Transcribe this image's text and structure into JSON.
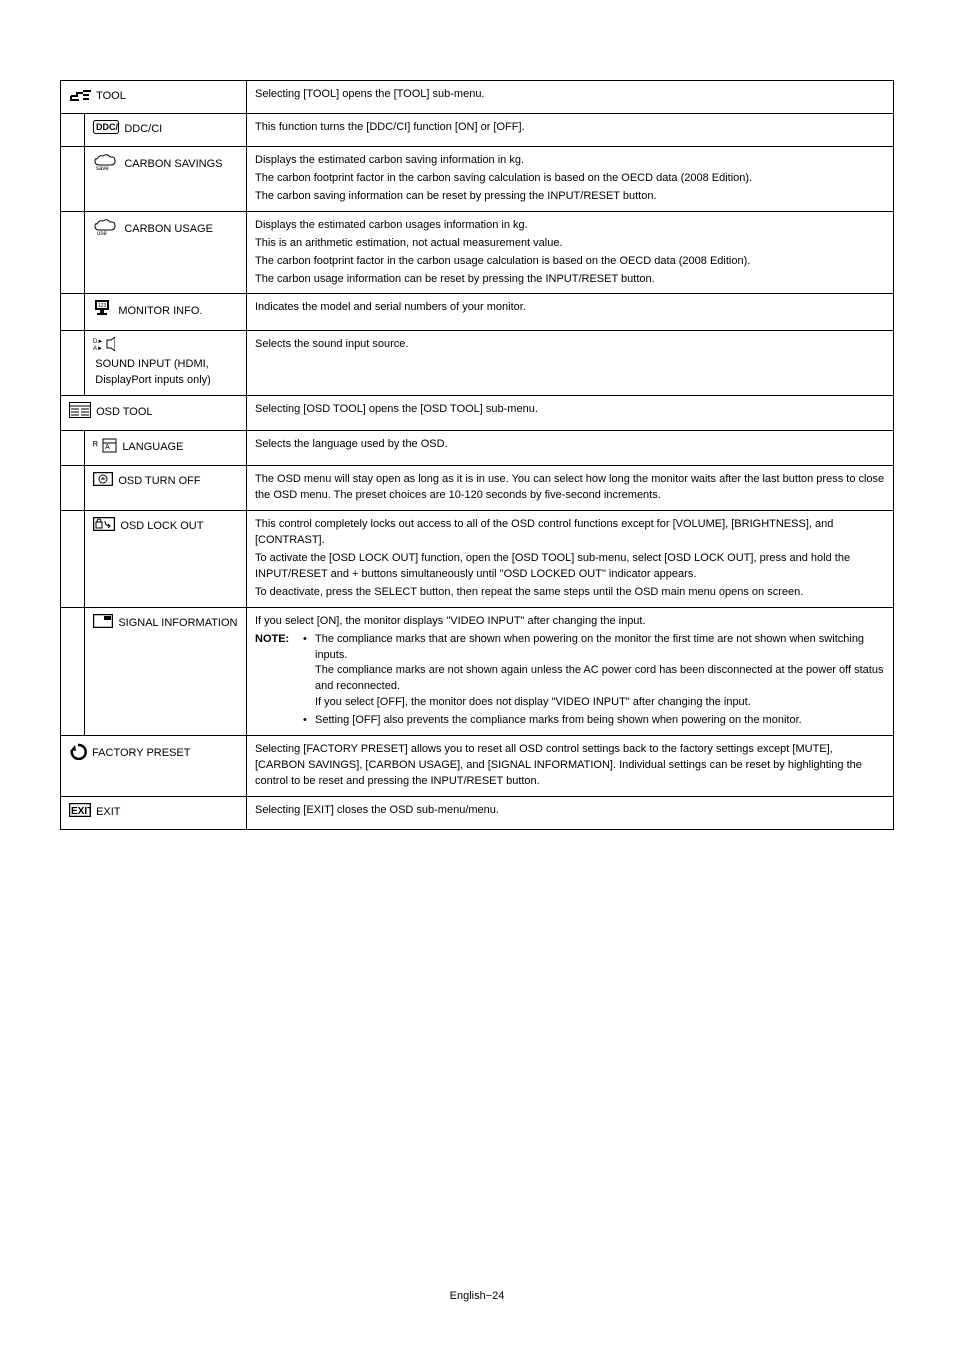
{
  "footer": "English−24",
  "rows": [
    {
      "type": "section",
      "iconSvg": "<svg width='22' height='14' viewBox='0 0 22 14'><path d='M2 9 L8 9 L8 6 L14 6 M14 4 L22 4 M14 8 L20 8 M14 12 L20 12' stroke='#000' stroke-width='2' fill='none'/><path d='M2 9 L2 13 L10 13' stroke='#000' stroke-width='2' fill='none'/></svg>",
      "label": "TOOL",
      "desc": "Selecting [TOOL] opens the [TOOL] sub-menu."
    },
    {
      "type": "sub",
      "iconSvg": "<svg width='26' height='14' viewBox='0 0 26 14'><rect x='0.5' y='0.5' width='25' height='13' rx='2' fill='none' stroke='#000' stroke-width='1'/><text x='3' y='10' font-size='9' font-family='Arial' font-weight='bold'>DDC/CI</text></svg>",
      "label": "DDC/CI",
      "desc": "This function turns the [DDC/CI] function [ON] or [OFF]."
    },
    {
      "type": "sub",
      "iconSvg": "<svg width='26' height='18' viewBox='0 0 26 18'><path d='M4 6 Q6 2 10 3 Q14 0 17 4 Q22 3 22 8 Q22 12 18 12 L6 12 Q2 12 2 8 Q2 5 4 6 Z' fill='none' stroke='#000' stroke-width='1'/><text x='3' y='17' font-size='6' font-family='Arial'>save</text></svg>",
      "label": "CARBON SAVINGS",
      "descLines": [
        "Displays the estimated carbon saving information in kg.",
        "The carbon footprint factor in the carbon saving calculation is based on the OECD data (2008 Edition).",
        "The carbon saving information can be reset by pressing the INPUT/RESET button."
      ]
    },
    {
      "type": "sub",
      "iconSvg": "<svg width='26' height='18' viewBox='0 0 26 18'><path d='M4 6 Q6 2 10 3 Q14 0 17 4 Q22 3 22 8 Q22 12 18 12 L6 12 Q2 12 2 8 Q2 5 4 6 Z' fill='none' stroke='#000' stroke-width='1'/><text x='4' y='17' font-size='6' font-family='Arial'>use</text></svg>",
      "label": "CARBON USAGE",
      "descLines": [
        "Displays the estimated carbon usages information in kg.",
        "This is an arithmetic estimation, not actual measurement value.",
        "The carbon footprint factor in the carbon usage calculation is based on the OECD data (2008 Edition).",
        "The carbon usage information can be reset by pressing the INPUT/RESET button."
      ]
    },
    {
      "type": "sub",
      "iconSvg": "<svg width='20' height='18' viewBox='0 0 20 18'><rect x='2' y='0' width='14' height='10' fill='#000'/><rect x='4' y='2' width='10' height='6' fill='#fff'/><text x='5' y='7' font-size='5' fill='#000'>123</text><rect x='7' y='10' width='4' height='3' fill='#000'/><rect x='4' y='13' width='10' height='2' fill='#000'/></svg>",
      "label": "MONITOR INFO.",
      "desc": "Indicates the model and serial numbers of your monitor."
    },
    {
      "type": "sub",
      "iconSvg": "<svg width='22' height='14' viewBox='0 0 22 14'><text x='0' y='6' font-size='6'>D►</text><text x='0' y='13' font-size='6'>A►</text><path d='M14 3 L18 3 L22 0 L22 14 L18 11 L14 11 Z' fill='none' stroke='#000' stroke-width='1'/></svg>",
      "label": "SOUND INPUT (HDMI, DisplayPort inputs only)",
      "desc": "Selects the sound input source."
    },
    {
      "type": "section",
      "iconSvg": "<svg width='22' height='16' viewBox='0 0 22 16'><rect x='0.5' y='0.5' width='21' height='15' fill='none' stroke='#000' stroke-width='1'/><line x1='0' y1='4' x2='22' y2='4' stroke='#000' stroke-width='1'/><line x1='2' y1='7' x2='10' y2='7' stroke='#000'/><line x1='2' y1='10' x2='10' y2='10' stroke='#000'/><line x1='2' y1='13' x2='10' y2='13' stroke='#000'/><line x1='12' y1='7' x2='20' y2='7' stroke='#000'/><line x1='12' y1='10' x2='20' y2='10' stroke='#000'/><line x1='12' y1='13' x2='20' y2='13' stroke='#000'/></svg>",
      "label": "OSD TOOL",
      "desc": "Selecting [OSD TOOL] opens the [OSD TOOL] sub-menu."
    },
    {
      "type": "sub",
      "iconSvg": "<svg width='24' height='16' viewBox='0 0 24 16'><text x='0' y='12' font-size='11'>ᴿ</text><rect x='10' y='2' width='13' height='13' fill='none' stroke='#000' stroke-width='1'/><line x1='10' y1='6' x2='23' y2='6' stroke='#000'/><text x='12' y='12' font-size='7'>Ä</text></svg>",
      "label": "LANGUAGE",
      "desc": "Selects the language used by the OSD."
    },
    {
      "type": "sub",
      "iconSvg": "<svg width='20' height='14' viewBox='0 0 20 14'><rect x='0.5' y='0.5' width='19' height='13' fill='none' stroke='#000' stroke-width='1.5'/><circle cx='10' cy='7' r='4' fill='none' stroke='#000' stroke-width='1'/><line x1='8' y1='7' x2='12' y2='7' stroke='#000'/><line x1='10' y1='5' x2='10' y2='7' stroke='#000'/></svg>",
      "label": "OSD TURN OFF",
      "desc": "The OSD menu will stay open as long as it is in use. You can select how long the monitor waits after the last button press to close the OSD menu. The preset choices are 10-120 seconds by five-second increments."
    },
    {
      "type": "sub",
      "iconSvg": "<svg width='22' height='14' viewBox='0 0 22 14'><rect x='0.5' y='0.5' width='21' height='13' fill='none' stroke='#000' stroke-width='1.5'/><rect x='3' y='5' width='6' height='6' fill='none' stroke='#000' stroke-width='1'/><path d='M4 5 Q4 2 6 2 Q8 2 8 5' fill='none' stroke='#000' stroke-width='1'/><path d='M12 4 Q12 9 17 9 M15 7 L17 9 L15 11' fill='none' stroke='#000' stroke-width='1'/></svg>",
      "label": "OSD LOCK OUT",
      "descLines": [
        "This control completely locks out access to all of the OSD control functions except for [VOLUME], [BRIGHTNESS], and [CONTRAST].",
        "To activate the [OSD LOCK OUT] function, open the [OSD TOOL] sub-menu, select [OSD LOCK OUT], press and hold the INPUT/RESET and + buttons simultaneously until \"OSD LOCKED OUT\" indicator appears.",
        "To deactivate, press the SELECT button, then repeat the same steps until the OSD main menu opens on screen."
      ]
    },
    {
      "type": "sub",
      "iconSvg": "<svg width='20' height='14' viewBox='0 0 20 14'><rect x='0.5' y='0.5' width='19' height='13' fill='none' stroke='#000' stroke-width='1.5'/><rect x='11' y='2' width='7' height='4' fill='#000'/></svg>",
      "label": "SIGNAL INFORMATION",
      "signalDesc": {
        "intro": "If you select [ON], the monitor displays \"VIDEO INPUT\" after changing the input.",
        "noteLabel": "NOTE:",
        "bullets": [
          "The compliance marks that are shown when powering on the monitor the first time are not shown when switching inputs.\nThe compliance marks are not shown again unless the AC power cord has been disconnected at the power off status and reconnected.\nIf you select [OFF], the monitor does not display \"VIDEO INPUT\" after changing the input.",
          "Setting [OFF] also prevents the compliance marks from being shown when powering on the monitor."
        ]
      }
    },
    {
      "type": "section",
      "iconSvg": "<svg width='18' height='18' viewBox='0 0 18 18'><path d='M9 3 A7 7 0 1 1 3 8' fill='none' stroke='#000' stroke-width='2.5'/><path d='M6 3 L2 8 L7 9 Z' fill='#000'/></svg>",
      "label": "FACTORY PRESET",
      "desc": "Selecting [FACTORY PRESET] allows you to reset all OSD control settings back to the factory settings except [MUTE], [CARBON SAVINGS], [CARBON USAGE], and [SIGNAL INFORMATION]. Individual settings can be reset by highlighting the control to be reset and pressing the INPUT/RESET button."
    },
    {
      "type": "section",
      "iconSvg": "<svg width='22' height='14' viewBox='0 0 22 14'><rect x='0.5' y='0.5' width='21' height='13' fill='none' stroke='#000' stroke-width='1.5'/><text x='2' y='11' font-size='10' font-weight='bold' font-family='Arial'>EXIT</text></svg>",
      "label": "EXIT",
      "desc": "Selecting [EXIT] closes the OSD sub-menu/menu."
    }
  ]
}
